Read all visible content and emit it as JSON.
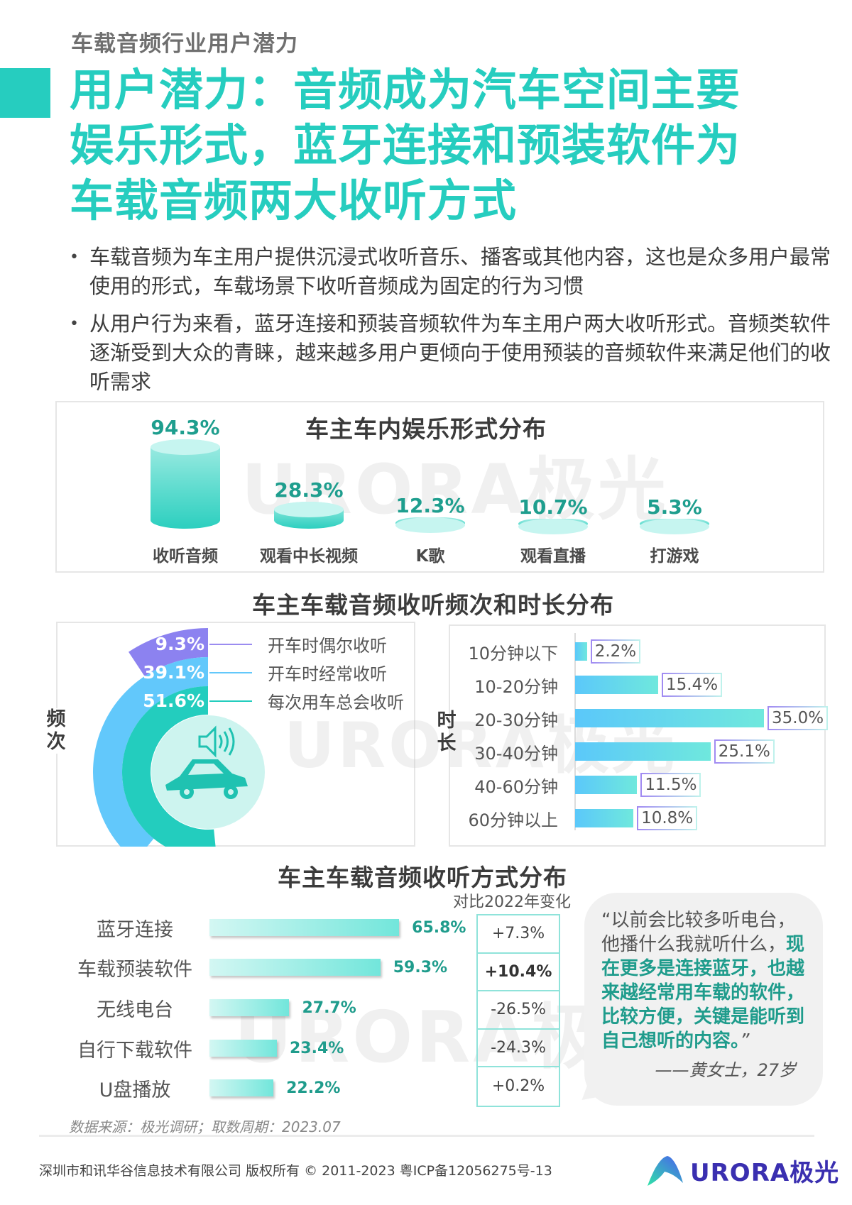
{
  "header": {
    "kicker": "车载音频行业用户潜力",
    "headline_lines": [
      "用户潜力：音频成为汽车空间主要",
      "娱乐形式，蓝牙连接和预装软件为",
      "车载音频两大收听方式"
    ],
    "accent_color": "#26cdbf"
  },
  "bullets": [
    "车载音频为车主用户提供沉浸式收听音乐、播客或其他内容，这也是众多用户最常使用的形式，车载场景下收听音频成为固定的行为习惯",
    "从用户行为来看，蓝牙连接和预装音频软件为车主用户两大收听形式。音频类软件逐渐受到大众的青睐，越来越多用户更倾向于使用预装的音频软件来满足他们的收听需求"
  ],
  "watermark": {
    "text": "URORA极光"
  },
  "chart_data": [
    {
      "type": "bar",
      "title": "车主车内娱乐形式分布",
      "style": "cylinder",
      "categories": [
        "收听音频",
        "观看中长视频",
        "K歌",
        "观看直播",
        "打游戏"
      ],
      "values": [
        94.3,
        28.3,
        12.3,
        10.7,
        5.3
      ],
      "labels": [
        "94.3%",
        "28.3%",
        "12.3%",
        "10.7%",
        "5.3%"
      ],
      "unit": "%"
    },
    {
      "type": "radial-bar",
      "title": "车主车载音频收听频次和时长分布",
      "axis_label": "频次",
      "categories": [
        "开车时偶尔收听",
        "开车时经常收听",
        "每次用车总会收听"
      ],
      "values": [
        9.3,
        39.1,
        51.6
      ],
      "labels": [
        "9.3%",
        "39.1%",
        "51.6%"
      ],
      "colors": [
        "#8c82f0",
        "#62c8fb",
        "#23cdbe"
      ],
      "unit": "%"
    },
    {
      "type": "bar",
      "orientation": "horizontal",
      "title": "车主车载音频收听频次和时长分布",
      "axis_label": "时长",
      "categories": [
        "10分钟以下",
        "10-20分钟",
        "20-30分钟",
        "30-40分钟",
        "40-60分钟",
        "60分钟以上"
      ],
      "values": [
        2.2,
        15.4,
        35.0,
        25.1,
        11.5,
        10.8
      ],
      "labels": [
        "2.2%",
        "15.4%",
        "35.0%",
        "25.1%",
        "11.5%",
        "10.8%"
      ],
      "unit": "%"
    },
    {
      "type": "bar",
      "orientation": "horizontal",
      "title": "车主车载音频收听方式分布",
      "categories": [
        "蓝牙连接",
        "车载预装软件",
        "无线电台",
        "自行下载软件",
        "U盘播放"
      ],
      "values": [
        65.8,
        59.3,
        27.7,
        23.4,
        22.2
      ],
      "labels": [
        "65.8%",
        "59.3%",
        "27.7%",
        "23.4%",
        "22.2%"
      ],
      "change_header": "对比2022年变化",
      "change_vs_2022": [
        "+7.3%",
        "+10.4%",
        "-26.5%",
        "-24.3%",
        "+0.2%"
      ],
      "unit": "%"
    }
  ],
  "charts": {
    "entertainment": {
      "title": "车主车内娱乐形式分布",
      "items": [
        {
          "label": "收听音频",
          "value": "94.3%"
        },
        {
          "label": "观看中长视频",
          "value": "28.3%"
        },
        {
          "label": "K歌",
          "value": "12.3%"
        },
        {
          "label": "观看直播",
          "value": "10.7%"
        },
        {
          "label": "打游戏",
          "value": "5.3%"
        }
      ]
    },
    "freq_duration": {
      "title": "车主车载音频收听频次和时长分布",
      "freq_axis": "频次",
      "duration_axis": "时长",
      "freq": [
        {
          "label": "开车时偶尔收听",
          "value": "9.3%"
        },
        {
          "label": "开车时经常收听",
          "value": "39.1%"
        },
        {
          "label": "每次用车总会收听",
          "value": "51.6%"
        }
      ],
      "duration": [
        {
          "label": "10分钟以下",
          "value": "2.2%"
        },
        {
          "label": "10-20分钟",
          "value": "15.4%"
        },
        {
          "label": "20-30分钟",
          "value": "35.0%"
        },
        {
          "label": "30-40分钟",
          "value": "25.1%"
        },
        {
          "label": "40-60分钟",
          "value": "11.5%"
        },
        {
          "label": "60分钟以上",
          "value": "10.8%"
        }
      ]
    },
    "method": {
      "title": "车主车载音频收听方式分布",
      "change_header": "对比2022年变化",
      "items": [
        {
          "label": "蓝牙连接",
          "value": "65.8%",
          "change": "+7.3%"
        },
        {
          "label": "车载预装软件",
          "value": "59.3%",
          "change": "+10.4%"
        },
        {
          "label": "无线电台",
          "value": "27.7%",
          "change": "-26.5%"
        },
        {
          "label": "自行下载软件",
          "value": "23.4%",
          "change": "-24.3%"
        },
        {
          "label": "U盘播放",
          "value": "22.2%",
          "change": "+0.2%"
        }
      ]
    }
  },
  "quote": {
    "normal": "“以前会比较多听电台，他播什么我就听什么，",
    "highlight": "现在更多是连接蓝牙，也越来越经常用车载的软件，比较方便，关键是能听到自己想听的内容。",
    "close": "”",
    "attribution": "——黄女士，27岁"
  },
  "footer": {
    "source": "数据来源：极光调研；取数周期：2023.07",
    "copyright": "深圳市和讯华谷信息技术有限公司 版权所有 © 2011-2023 粤ICP备12056275号-13",
    "logo_text": "URORA极光"
  }
}
